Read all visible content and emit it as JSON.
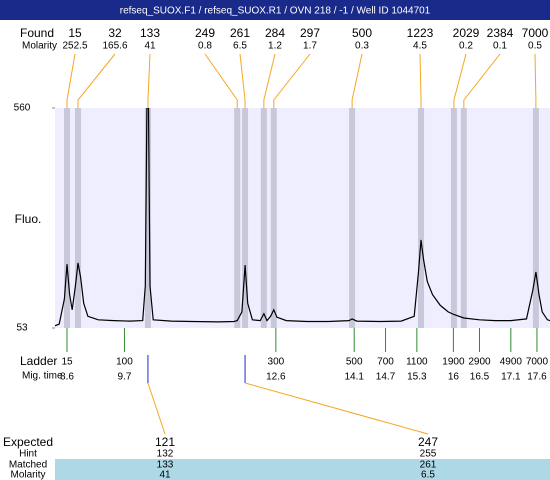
{
  "title": "refseq_SUOX.F1 / refseq_SUOX.R1 / OVN 218 / -1 / Well ID 1044701",
  "chart_data": {
    "type": "line",
    "y_label": "Fluo.",
    "ylim": [
      53,
      560
    ],
    "yticks": [
      53,
      560
    ],
    "xlim": [
      8.37,
      17.85
    ],
    "color": "#000000",
    "x": [
      8.37,
      8.45,
      8.55,
      8.6,
      8.65,
      8.7,
      8.76,
      8.81,
      8.86,
      8.92,
      9.0,
      9.2,
      9.5,
      9.8,
      10.05,
      10.1,
      10.13,
      10.16,
      10.19,
      10.25,
      10.6,
      11.0,
      11.5,
      11.8,
      11.86,
      11.95,
      12.01,
      12.06,
      12.15,
      12.3,
      12.37,
      12.43,
      12.5,
      12.56,
      12.62,
      12.8,
      13.2,
      13.6,
      14.0,
      14.06,
      14.15,
      14.6,
      15.0,
      15.25,
      15.33,
      15.38,
      15.43,
      15.5,
      15.6,
      15.75,
      15.9,
      16.01,
      16.2,
      16.5,
      16.8,
      17.1,
      17.4,
      17.52,
      17.58,
      17.64,
      17.7,
      17.8,
      17.85
    ],
    "values": [
      58,
      62,
      120,
      200,
      130,
      95,
      150,
      203,
      170,
      110,
      80,
      72,
      70,
      69,
      70,
      150,
      560,
      560,
      150,
      72,
      69,
      68,
      67,
      68,
      70,
      90,
      198,
      110,
      72,
      70,
      86,
      70,
      80,
      95,
      78,
      70,
      68,
      68,
      70,
      74,
      69,
      68,
      69,
      80,
      180,
      256,
      210,
      160,
      130,
      105,
      90,
      84,
      76,
      72,
      70,
      70,
      74,
      140,
      182,
      130,
      90,
      72,
      70
    ],
    "found": {
      "label": "Found",
      "molarity_label": "Molarity",
      "sizes": [
        15,
        32,
        133,
        249,
        261,
        284,
        297,
        500,
        1223,
        2029,
        2384,
        7000
      ],
      "molarity": [
        252.5,
        165.6,
        41,
        0.8,
        6.5,
        1.2,
        1.7,
        0.3,
        4.5,
        0.2,
        0.1,
        0.5
      ],
      "x": [
        8.6,
        8.81,
        10.15,
        11.86,
        12.01,
        12.37,
        12.56,
        14.06,
        15.38,
        16.01,
        16.2,
        17.58
      ]
    },
    "ladder": {
      "label": "Ladder",
      "time_label": "Mig. time",
      "sizes": [
        15,
        100,
        300,
        500,
        700,
        1100,
        1900,
        2900,
        4900,
        7000
      ],
      "mig_times": [
        8.6,
        9.7,
        12.6,
        14.1,
        14.7,
        15.3,
        16,
        16.5,
        17.1,
        17.6
      ]
    },
    "expected": {
      "label": "Expected",
      "values": [
        121,
        247
      ],
      "hint_label": "Hint",
      "hint": [
        132,
        255
      ],
      "matched_label": "Matched",
      "matched": [
        133,
        261
      ],
      "molarity_label": "Molarity",
      "molarity": [
        41,
        6.5
      ]
    }
  }
}
